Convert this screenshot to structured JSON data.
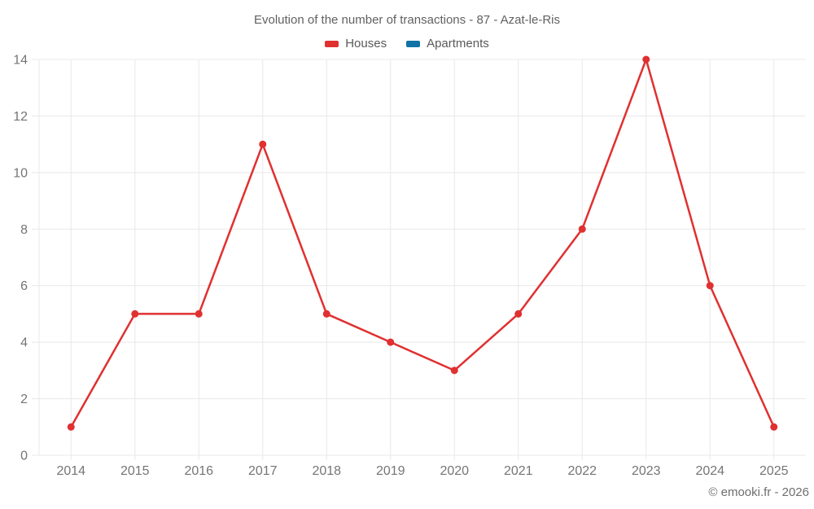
{
  "chart": {
    "title": "Evolution of the number of transactions - 87 - Azat-le-Ris",
    "watermark": "© emooki.fr - 2026"
  },
  "chart_data": {
    "type": "line",
    "title": "Evolution of the number of transactions - 87 - Azat-le-Ris",
    "categories": [
      "2014",
      "2015",
      "2016",
      "2017",
      "2018",
      "2019",
      "2020",
      "2021",
      "2022",
      "2023",
      "2024",
      "2025"
    ],
    "series": [
      {
        "name": "Houses",
        "color": "#e03030",
        "values": [
          1,
          5,
          5,
          11,
          5,
          4,
          3,
          5,
          8,
          14,
          6,
          1
        ]
      },
      {
        "name": "Apartments",
        "color": "#0f73a5",
        "values": []
      }
    ],
    "xlabel": "",
    "ylabel": "",
    "ylim": [
      0,
      14
    ],
    "yticks": [
      0,
      2,
      4,
      6,
      8,
      10,
      12,
      14
    ],
    "grid": true,
    "legend_position": "top",
    "line_width": 2.5,
    "point_radius": 4.5
  },
  "style": {
    "grid_color": "#e8e8e8",
    "tick_text_color": "#757575",
    "title_color": "#616161",
    "legend_text_color": "#595959",
    "watermark_color": "#6e6e6e",
    "background": "#ffffff"
  }
}
